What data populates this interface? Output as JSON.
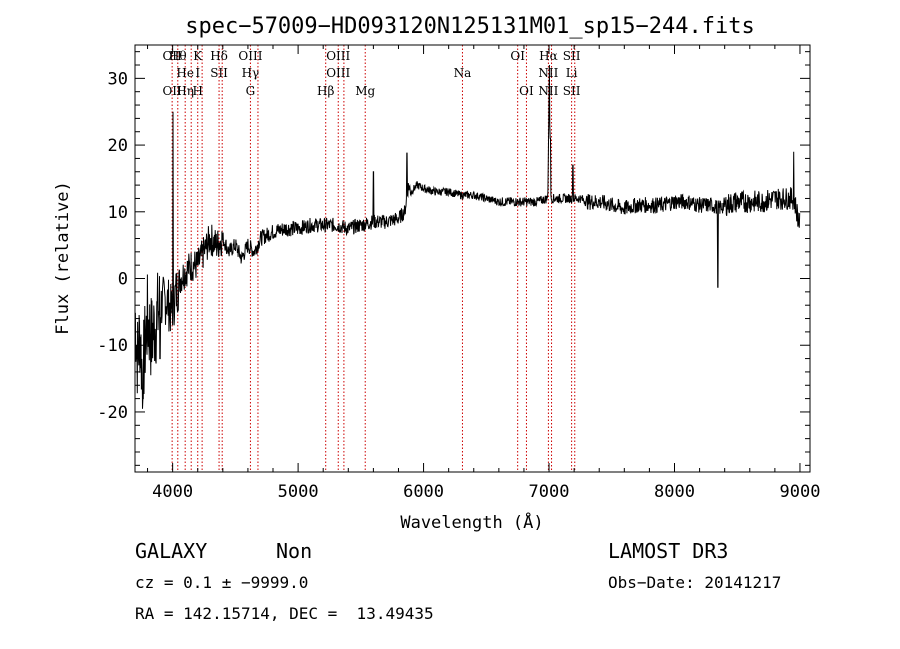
{
  "chart_data": {
    "type": "line",
    "title": "spec−57009−HD093120N125131M01_sp15−244.fits",
    "xlabel": "Wavelength (Å)",
    "ylabel": "Flux (relative)",
    "xlim": [
      3700,
      9080
    ],
    "ylim": [
      -29,
      35
    ],
    "xticks": [
      4000,
      5000,
      6000,
      7000,
      8000,
      9000
    ],
    "yticks": [
      -20,
      -10,
      0,
      10,
      20,
      30
    ],
    "grid": false,
    "spectrum_anchor_points": {
      "x": [
        3700,
        3720,
        3740,
        3760,
        3780,
        3800,
        3830,
        3860,
        3900,
        3950,
        3990,
        4000,
        4030,
        4060,
        4100,
        4150,
        4200,
        4250,
        4300,
        4350,
        4400,
        4450,
        4500,
        4550,
        4600,
        4650,
        4700,
        4800,
        4900,
        5000,
        5100,
        5200,
        5300,
        5400,
        5500,
        5600,
        5700,
        5800,
        5850,
        5880,
        5900,
        5950,
        6000,
        6100,
        6200,
        6300,
        6400,
        6500,
        6600,
        6700,
        6800,
        6900,
        6990,
        7003,
        7010,
        7030,
        7050,
        7100,
        7150,
        7200,
        7250,
        7300,
        7400,
        7500,
        7600,
        7700,
        7800,
        7900,
        8000,
        8100,
        8200,
        8300,
        8350,
        8400,
        8500,
        8600,
        8700,
        8800,
        8900,
        8950,
        9000
      ],
      "y": [
        -5,
        -12,
        -8,
        -15,
        -10,
        -6,
        -9,
        -7,
        -4,
        -3,
        -5,
        -4,
        -2,
        0,
        1,
        2,
        2,
        4,
        6,
        5,
        6,
        4,
        5,
        3,
        5,
        4,
        6,
        7,
        7.5,
        7.5,
        8,
        8,
        8,
        7.5,
        8,
        8.5,
        8.5,
        9,
        10,
        14,
        13,
        14,
        13.5,
        13,
        13,
        12.5,
        12.5,
        12,
        11.5,
        11.5,
        11.5,
        11.5,
        12,
        32,
        12,
        12,
        12,
        12,
        12,
        12,
        12,
        11.5,
        11.5,
        11,
        10.5,
        11,
        11,
        11,
        11.5,
        11.5,
        11,
        11,
        10.5,
        11,
        11.5,
        11.5,
        11.5,
        12,
        12,
        12,
        8
      ]
    },
    "emission_peaks": [
      {
        "x": 4002,
        "y": 25
      },
      {
        "x": 5868,
        "y": 18.8
      },
      {
        "x": 5600,
        "y": 16
      },
      {
        "x": 7003,
        "y": 32
      },
      {
        "x": 7010,
        "y": 21
      },
      {
        "x": 7190,
        "y": 17
      },
      {
        "x": 8950,
        "y": 19
      }
    ],
    "absorption_dips": [
      {
        "x": 3765,
        "y": -18
      },
      {
        "x": 3900,
        "y": -12
      },
      {
        "x": 4000,
        "y": -7
      },
      {
        "x": 8345,
        "y": -1.3
      }
    ],
    "line_markers": [
      {
        "x": 3996,
        "top": "OII",
        "bottom": "OII"
      },
      {
        "x": 4041,
        "top": "Hθ",
        "mid": "",
        "bottom": ""
      },
      {
        "x": 4100,
        "top": "",
        "mid": "He",
        "bottom": "Hη"
      },
      {
        "x": 4148,
        "top": "",
        "mid": "",
        "bottom": ""
      },
      {
        "x": 4200,
        "top": "K",
        "mid": "I",
        "bottom": "H"
      },
      {
        "x": 4235,
        "top": "",
        "mid": "",
        "bottom": ""
      },
      {
        "x": 4370,
        "top": "Hδ",
        "mid": "SII",
        "bottom": ""
      },
      {
        "x": 4395,
        "top": "",
        "mid": "",
        "bottom": ""
      },
      {
        "x": 4620,
        "top": "OIII",
        "mid": "Hγ",
        "bottom": "G"
      },
      {
        "x": 4680,
        "top": "",
        "mid": "",
        "bottom": ""
      },
      {
        "x": 5220,
        "top": "",
        "mid": "",
        "bottom": "Hβ"
      },
      {
        "x": 5320,
        "top": "OIII",
        "mid": "OIII",
        "bottom": ""
      },
      {
        "x": 5365,
        "top": "",
        "mid": "",
        "bottom": ""
      },
      {
        "x": 5535,
        "top": "",
        "mid": "",
        "bottom": "Mg"
      },
      {
        "x": 6310,
        "top": "",
        "mid": "Na",
        "bottom": ""
      },
      {
        "x": 6750,
        "top": "OI",
        "mid": "",
        "bottom": ""
      },
      {
        "x": 6820,
        "top": "",
        "mid": "",
        "bottom": "OI"
      },
      {
        "x": 6995,
        "top": "Hα",
        "mid": "NII",
        "bottom": "NII"
      },
      {
        "x": 7020,
        "top": "",
        "mid": "",
        "bottom": ""
      },
      {
        "x": 7180,
        "top": "SII",
        "mid": "Li",
        "bottom": "SII"
      },
      {
        "x": 7205,
        "top": "",
        "mid": "",
        "bottom": ""
      }
    ]
  },
  "info": {
    "class": "GALAXY",
    "subclass": "Non",
    "survey": "LAMOST DR3",
    "cz": "cz = 0.1 ± −9999.0",
    "obs_date": "Obs−Date: 20141217",
    "coords": "RA = 142.15714, DEC =  13.49435"
  },
  "colors": {
    "spectrum": "#000000",
    "line_markers": "#cc0000",
    "axes": "#000000"
  }
}
